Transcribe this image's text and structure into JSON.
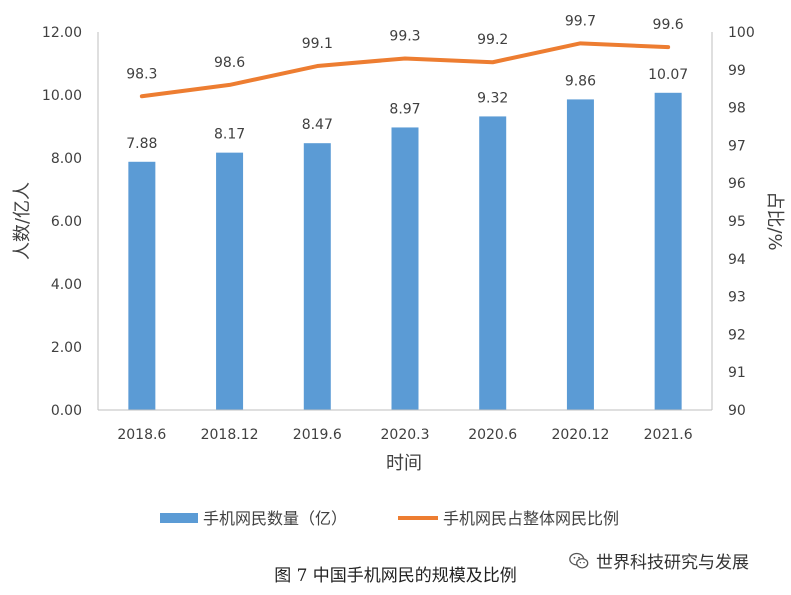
{
  "chart_data": {
    "type": "bar+line",
    "categories": [
      "2018.6",
      "2018.12",
      "2019.6",
      "2020.3",
      "2020.6",
      "2020.12",
      "2021.6"
    ],
    "series": [
      {
        "name": "手机网民数量（亿）",
        "type": "bar",
        "axis": "left",
        "color": "#5B9BD5",
        "values": [
          7.88,
          8.17,
          8.47,
          8.97,
          9.32,
          9.86,
          10.07
        ],
        "labels": [
          "7.88",
          "8.17",
          "8.47",
          "8.97",
          "9.32",
          "9.86",
          "10.07"
        ]
      },
      {
        "name": "手机网民占整体网民比例",
        "type": "line",
        "axis": "right",
        "color": "#ED7D31",
        "values": [
          98.3,
          98.6,
          99.1,
          99.3,
          99.2,
          99.7,
          99.6
        ],
        "labels": [
          "98.3",
          "98.6",
          "99.1",
          "99.3",
          "99.2",
          "99.7",
          "99.6"
        ]
      }
    ],
    "xlabel": "时间",
    "ylabel": "人数/亿人",
    "y2label": "占比/%",
    "ylim": [
      0,
      12
    ],
    "y2lim": [
      90,
      100
    ],
    "yticks": [
      "0.00",
      "2.00",
      "4.00",
      "6.00",
      "8.00",
      "10.00",
      "12.00"
    ],
    "y2ticks": [
      "90",
      "91",
      "92",
      "93",
      "94",
      "95",
      "96",
      "97",
      "98",
      "99",
      "100"
    ],
    "grid": false,
    "legend": "bottom"
  },
  "caption": "图 7  中国手机网民的规模及比例",
  "watermark": "世界科技研究与发展",
  "watermark_icon": "wechat-icon"
}
